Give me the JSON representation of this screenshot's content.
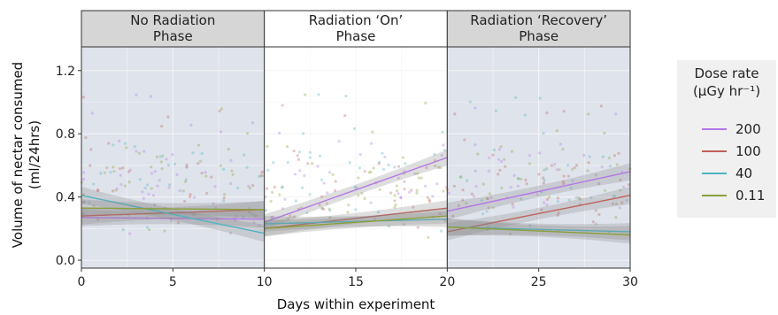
{
  "chart_data": {
    "type": "scatter",
    "xlabel": "Days within experiment",
    "ylabel_line1": "Volume of nectar consumed",
    "ylabel_line2": "(ml/24hrs)",
    "xlim": [
      0,
      30
    ],
    "ylim": [
      -0.05,
      1.35
    ],
    "x_ticks": [
      "0",
      "5",
      "10",
      "15",
      "20",
      "25",
      "30"
    ],
    "y_ticks": [
      "0.0",
      "0.4",
      "0.8",
      "1.2"
    ],
    "grid": true,
    "legend_position": "right",
    "legend_title_line1": "Dose rate",
    "legend_title_line2": "(μGy hr⁻¹)",
    "panels": [
      {
        "title_line1": "No Radiation",
        "title_line2": "Phase",
        "x_range": [
          0,
          10
        ],
        "shaded": true,
        "series": [
          {
            "name": "200",
            "x": [
              0,
              10
            ],
            "y": [
              0.27,
              0.26
            ]
          },
          {
            "name": "100",
            "x": [
              0,
              10
            ],
            "y": [
              0.28,
              0.32
            ]
          },
          {
            "name": "40",
            "x": [
              0,
              10
            ],
            "y": [
              0.41,
              0.17
            ]
          },
          {
            "name": "0.11",
            "x": [
              0,
              10
            ],
            "y": [
              0.33,
              0.32
            ]
          }
        ]
      },
      {
        "title_line1": "Radiation ‘On’",
        "title_line2": "Phase",
        "x_range": [
          10,
          20
        ],
        "shaded": false,
        "series": [
          {
            "name": "200",
            "x": [
              10,
              20
            ],
            "y": [
              0.24,
              0.65
            ]
          },
          {
            "name": "100",
            "x": [
              10,
              20
            ],
            "y": [
              0.2,
              0.33
            ]
          },
          {
            "name": "40",
            "x": [
              10,
              20
            ],
            "y": [
              0.23,
              0.26
            ]
          },
          {
            "name": "0.11",
            "x": [
              10,
              20
            ],
            "y": [
              0.2,
              0.28
            ]
          }
        ]
      },
      {
        "title_line1": "Radiation ‘Recovery’",
        "title_line2": "Phase",
        "x_range": [
          20,
          30
        ],
        "shaded": true,
        "series": [
          {
            "name": "200",
            "x": [
              20,
              30
            ],
            "y": [
              0.31,
              0.56
            ]
          },
          {
            "name": "100",
            "x": [
              20,
              30
            ],
            "y": [
              0.18,
              0.41
            ]
          },
          {
            "name": "40",
            "x": [
              20,
              30
            ],
            "y": [
              0.21,
              0.18
            ]
          },
          {
            "name": "0.11",
            "x": [
              20,
              30
            ],
            "y": [
              0.21,
              0.16
            ]
          }
        ]
      }
    ],
    "legend": [
      {
        "name": "200",
        "color": "#b377e8"
      },
      {
        "name": "100",
        "color": "#c0605a"
      },
      {
        "name": "40",
        "color": "#4fb3c2"
      },
      {
        "name": "0.11",
        "color": "#8aa03a"
      }
    ]
  },
  "colors": {
    "panel_shaded": "#dfe3ec",
    "panel_plain": "#ffffff",
    "strip_shaded": "#d6d6d6",
    "strip_plain": "#ffffff",
    "ribbon": "#8a8a8a"
  }
}
